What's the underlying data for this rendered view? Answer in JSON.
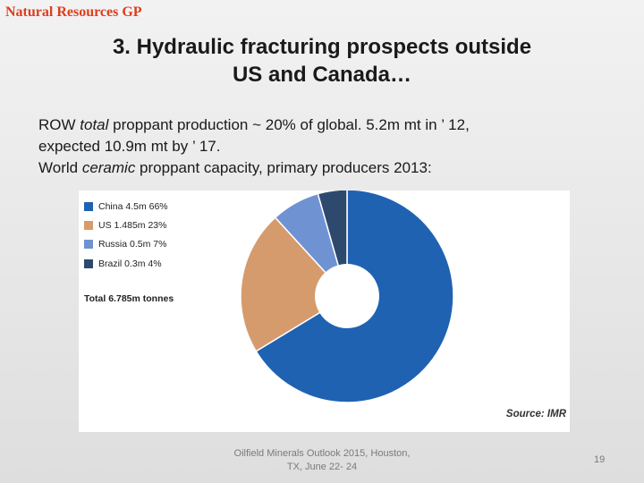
{
  "header": {
    "brand": "Natural Resources GP",
    "title_line1": "3. Hydraulic fracturing prospects outside",
    "title_line2": "US and Canada…"
  },
  "body": {
    "line1_pre": "ROW ",
    "line1_em": "total",
    "line1_post": " proppant production ~ 20% of global. 5.2m mt in ’ 12,",
    "line2": "expected 10.9m mt by ’ 17.",
    "line3_pre": "World ",
    "line3_em": "ceramic",
    "line3_post": " proppant capacity, primary producers 2013:"
  },
  "chart_data": {
    "type": "pie",
    "donut": true,
    "categories": [
      "China",
      "US",
      "Russia",
      "Brazil"
    ],
    "values": [
      4.5,
      1.485,
      0.5,
      0.3
    ],
    "percents": [
      66,
      23,
      7,
      4
    ],
    "legend_labels": [
      "China 4.5m 66%",
      "US 1.485m 23%",
      "Russia 0.5m 7%",
      "Brazil 0.3m 4%"
    ],
    "colors": [
      "#1f62b2",
      "#d69b6c",
      "#6f93d2",
      "#2d4a6e"
    ],
    "total_label": "Total 6.785m tonnes",
    "source": "Source: IMR",
    "legend_position": "top-left"
  },
  "footer": {
    "line1": "Oilfield Minerals Outlook 2015, Houston,",
    "line2": "TX, June 22- 24",
    "page": "19"
  }
}
